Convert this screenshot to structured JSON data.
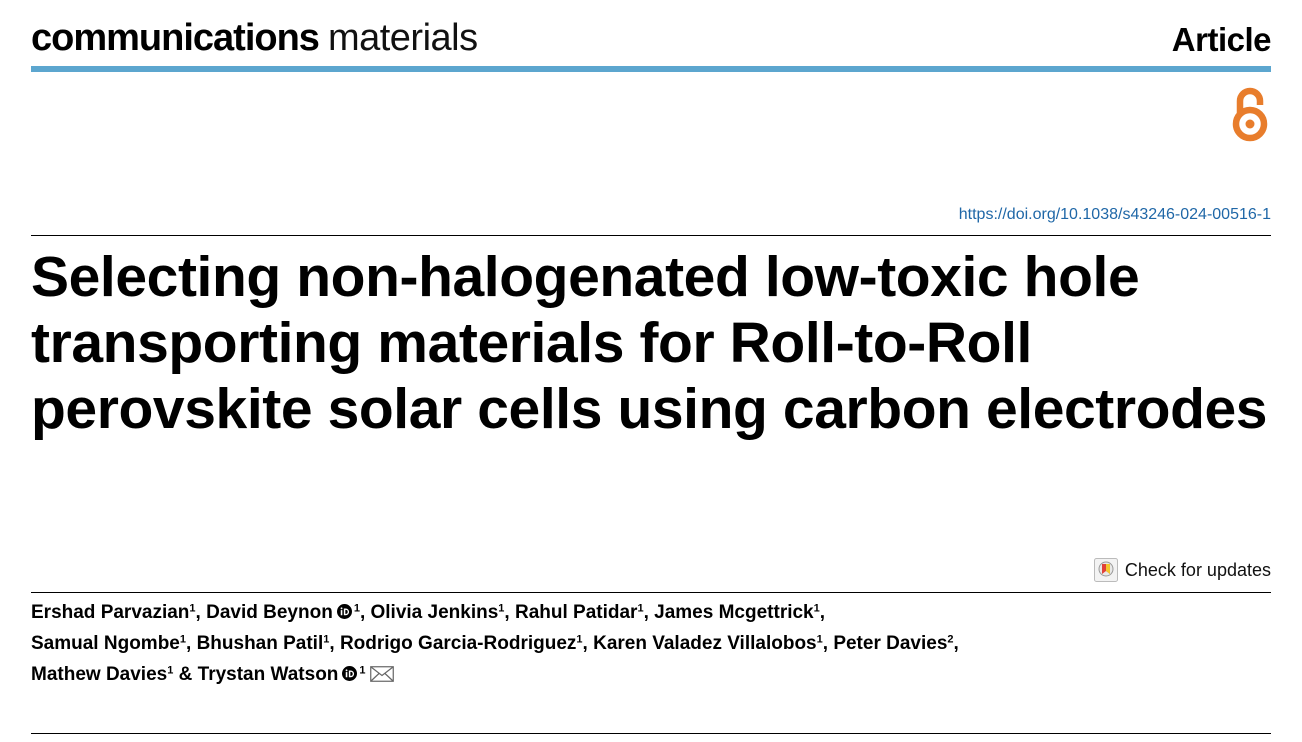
{
  "journal": {
    "name_bold": "communications",
    "name_light": "materials"
  },
  "article_type": "Article",
  "open_access": {
    "icon": "open-access-icon",
    "color": "#e87d2c"
  },
  "doi": "https://doi.org/10.1038/s43246-024-00516-1",
  "title": "Selecting non-halogenated low-toxic hole transporting materials for Roll-to-Roll perovskite solar cells using carbon electrodes",
  "check_updates": {
    "label": "Check for updates",
    "icon": "check-for-updates-icon"
  },
  "authors": [
    {
      "name": "Ershad Parvazian",
      "aff": "1",
      "orcid": false
    },
    {
      "name": "David Beynon",
      "aff": "1",
      "orcid": true
    },
    {
      "name": "Olivia Jenkins",
      "aff": "1",
      "orcid": false
    },
    {
      "name": "Rahul Patidar",
      "aff": "1",
      "orcid": false
    },
    {
      "name": "James Mcgettrick",
      "aff": "1",
      "orcid": false
    },
    {
      "name": "Samual Ngombe",
      "aff": "1",
      "orcid": false
    },
    {
      "name": "Bhushan Patil",
      "aff": "1",
      "orcid": false
    },
    {
      "name": "Rodrigo Garcia-Rodriguez",
      "aff": "1",
      "orcid": false
    },
    {
      "name": "Karen Valadez Villalobos",
      "aff": "1",
      "orcid": false
    },
    {
      "name": "Peter Davies",
      "aff": "2",
      "orcid": false
    },
    {
      "name": "Mathew Davies",
      "aff": "1",
      "orcid": false
    },
    {
      "name": "Trystan Watson",
      "aff": "1",
      "orcid": true,
      "corresponding": true
    }
  ],
  "colors": {
    "accent_rule": "#5ca6cf",
    "doi_link": "#1f67a7"
  }
}
